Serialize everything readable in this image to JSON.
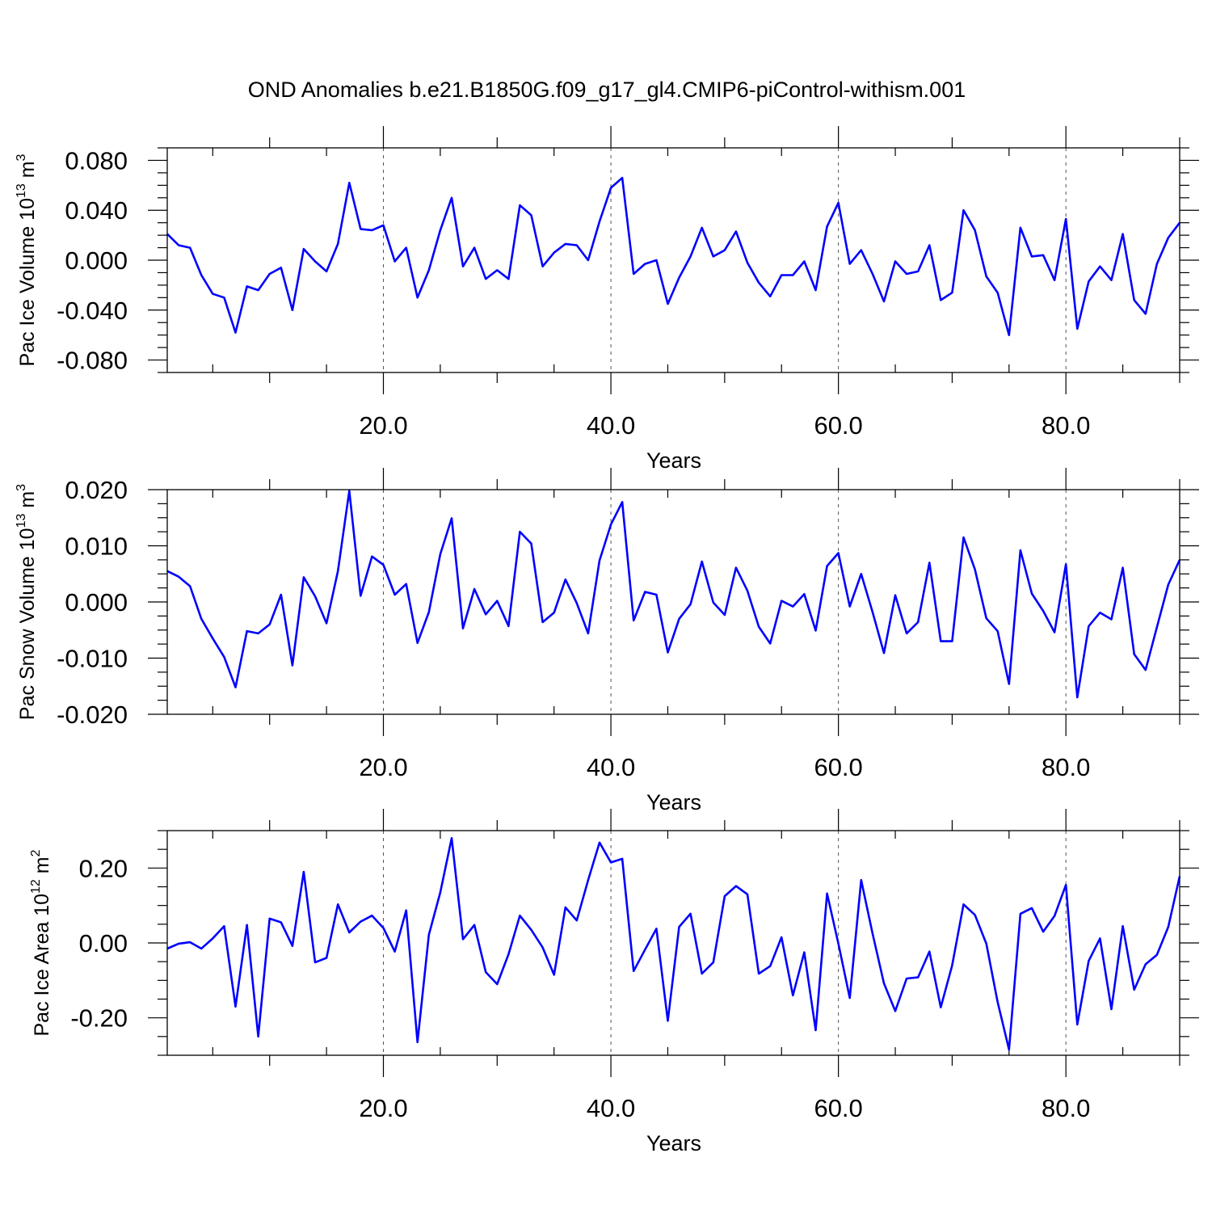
{
  "title": "OND Anomalies b.e21.B1850G.f09_g17_gl4.CMIP6-piControl-withism.001",
  "chart_data": [
    {
      "type": "line",
      "ylabel": "Pac Ice Volume 10",
      "ylabel_exp": "13",
      "ylabel_unit": " m",
      "ylabel_unit_exp": "3",
      "xlabel": "Years",
      "xlim": [
        1,
        90
      ],
      "ylim": [
        -0.09,
        0.09
      ],
      "x_ticks": [
        20,
        40,
        60,
        80
      ],
      "x_tick_labels": [
        "20.0",
        "40.0",
        "60.0",
        "80.0"
      ],
      "y_ticks": [
        -0.08,
        -0.04,
        0.0,
        0.04,
        0.08
      ],
      "y_tick_labels": [
        "-0.080",
        "-0.040",
        "0.000",
        "0.040",
        "0.080"
      ],
      "grid": "vertical dashed at major x ticks",
      "color": "#0000ff",
      "series": [
        {
          "x_start": 1,
          "values": [
            0.021,
            0.012,
            0.01,
            -0.012,
            -0.027,
            -0.03,
            -0.058,
            -0.021,
            -0.024,
            -0.011,
            -0.006,
            -0.04,
            0.009,
            -0.001,
            -0.009,
            0.013,
            0.062,
            0.025,
            0.024,
            0.028,
            -0.001,
            0.01,
            -0.03,
            -0.008,
            0.024,
            0.05,
            -0.005,
            0.01,
            -0.015,
            -0.008,
            -0.015,
            0.044,
            0.036,
            -0.005,
            0.006,
            0.013,
            0.012,
            0.0,
            0.031,
            0.058,
            0.066,
            -0.011,
            -0.003,
            0.0,
            -0.035,
            -0.014,
            0.003,
            0.026,
            0.003,
            0.008,
            0.023,
            -0.002,
            -0.018,
            -0.029,
            -0.012,
            -0.012,
            -0.001,
            -0.024,
            0.027,
            0.046,
            -0.003,
            0.008,
            -0.011,
            -0.033,
            -0.001,
            -0.011,
            -0.009,
            0.012,
            -0.032,
            -0.026,
            0.04,
            0.024,
            -0.013,
            -0.026,
            -0.06,
            0.026,
            0.003,
            0.004,
            -0.016,
            0.033,
            -0.055,
            -0.017,
            -0.005,
            -0.016,
            0.021,
            -0.032,
            -0.043,
            -0.003,
            0.018,
            0.03
          ]
        }
      ]
    },
    {
      "type": "line",
      "ylabel": "Pac Snow Volume 10",
      "ylabel_exp": "13",
      "ylabel_unit": " m",
      "ylabel_unit_exp": "3",
      "xlabel": "Years",
      "xlim": [
        1,
        90
      ],
      "ylim": [
        -0.02,
        0.02
      ],
      "x_ticks": [
        20,
        40,
        60,
        80
      ],
      "x_tick_labels": [
        "20.0",
        "40.0",
        "60.0",
        "80.0"
      ],
      "y_ticks": [
        -0.02,
        -0.01,
        0.0,
        0.01,
        0.02
      ],
      "y_tick_labels": [
        "-0.020",
        "-0.010",
        "0.000",
        "0.010",
        "0.020"
      ],
      "grid": "vertical dashed at major x ticks",
      "color": "#0000ff",
      "series": [
        {
          "x_start": 1,
          "values": [
            0.0055,
            0.0045,
            0.0028,
            -0.003,
            -0.0065,
            -0.0098,
            -0.0152,
            -0.0052,
            -0.0056,
            -0.004,
            0.0013,
            -0.0113,
            0.0044,
            0.001,
            -0.0038,
            0.0055,
            0.0198,
            0.0011,
            0.0081,
            0.0066,
            0.0013,
            0.0032,
            -0.0073,
            -0.0018,
            0.0085,
            0.0149,
            -0.0047,
            0.0023,
            -0.0022,
            0.0002,
            -0.0043,
            0.0125,
            0.0104,
            -0.0036,
            -0.0019,
            0.004,
            -0.0002,
            -0.0056,
            0.0074,
            0.0138,
            0.0178,
            -0.0033,
            0.0018,
            0.0013,
            -0.009,
            -0.003,
            -0.0004,
            0.0072,
            -0.0001,
            -0.0023,
            0.0061,
            0.002,
            -0.0044,
            -0.0074,
            0.0002,
            -0.0008,
            0.0014,
            -0.0051,
            0.0064,
            0.0087,
            -0.0008,
            0.005,
            -0.0018,
            -0.0091,
            0.0012,
            -0.0056,
            -0.0036,
            0.007,
            -0.007,
            -0.007,
            0.0115,
            0.0058,
            -0.0029,
            -0.0052,
            -0.0146,
            0.0092,
            0.0015,
            -0.0016,
            -0.0054,
            0.0067,
            -0.017,
            -0.0043,
            -0.0019,
            -0.0031,
            0.0061,
            -0.0093,
            -0.0121,
            -0.0045,
            0.0031,
            0.0075
          ]
        }
      ]
    },
    {
      "type": "line",
      "ylabel": "Pac Ice Area 10",
      "ylabel_exp": "12",
      "ylabel_unit": " m",
      "ylabel_unit_exp": "2",
      "xlabel": "Years",
      "xlim": [
        1,
        90
      ],
      "ylim": [
        -0.3,
        0.3
      ],
      "x_ticks": [
        20,
        40,
        60,
        80
      ],
      "x_tick_labels": [
        "20.0",
        "40.0",
        "60.0",
        "80.0"
      ],
      "y_ticks": [
        -0.2,
        0.0,
        0.2
      ],
      "y_tick_labels": [
        "-0.20",
        "0.00",
        "0.20"
      ],
      "grid": "vertical dashed at major x ticks",
      "color": "#0000ff",
      "series": [
        {
          "x_start": 1,
          "values": [
            -0.015,
            -0.002,
            0.002,
            -0.015,
            0.012,
            0.045,
            -0.17,
            0.048,
            -0.25,
            0.065,
            0.055,
            -0.008,
            0.19,
            -0.052,
            -0.04,
            0.103,
            0.028,
            0.057,
            0.073,
            0.04,
            -0.023,
            0.087,
            -0.265,
            0.022,
            0.135,
            0.28,
            0.01,
            0.048,
            -0.078,
            -0.11,
            -0.03,
            0.073,
            0.035,
            -0.012,
            -0.085,
            0.095,
            0.06,
            0.168,
            0.268,
            0.215,
            0.225,
            -0.075,
            -0.018,
            0.038,
            -0.208,
            0.043,
            0.078,
            -0.082,
            -0.052,
            0.125,
            0.152,
            0.13,
            -0.082,
            -0.062,
            0.015,
            -0.14,
            -0.025,
            -0.233,
            0.132,
            -0.002,
            -0.147,
            0.168,
            0.025,
            -0.108,
            -0.182,
            -0.095,
            -0.092,
            -0.023,
            -0.172,
            -0.06,
            0.103,
            0.075,
            -0.002,
            -0.158,
            -0.285,
            0.078,
            0.093,
            0.03,
            0.072,
            0.155,
            -0.218,
            -0.048,
            0.012,
            -0.177,
            0.045,
            -0.125,
            -0.057,
            -0.032,
            0.043,
            0.178
          ]
        }
      ]
    }
  ]
}
